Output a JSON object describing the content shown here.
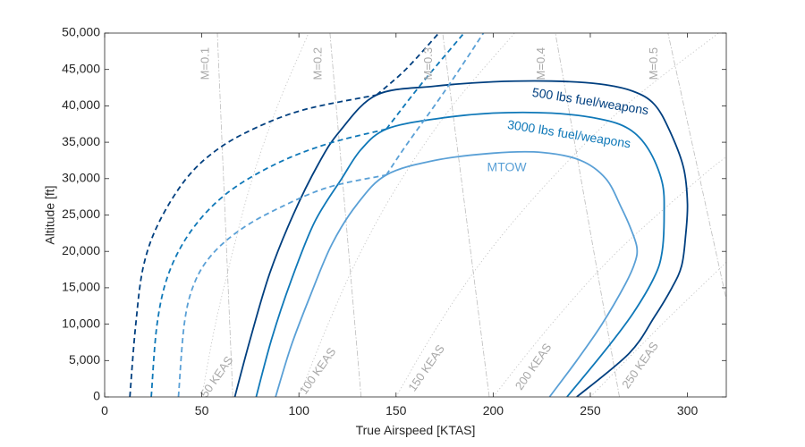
{
  "chart_data": {
    "type": "line",
    "xlabel": "True Airspeed [KTAS]",
    "ylabel": "Altitude [ft]",
    "xlim": [
      0,
      320
    ],
    "ylim": [
      0,
      50000
    ],
    "xticks": [
      0,
      50,
      100,
      150,
      200,
      250,
      300
    ],
    "yticks": [
      0,
      5000,
      10000,
      15000,
      20000,
      25000,
      30000,
      35000,
      40000,
      45000,
      50000
    ],
    "xtick_labels": [
      "0",
      "50",
      "100",
      "150",
      "200",
      "250",
      "300"
    ],
    "ytick_labels": [
      "0",
      "5,000",
      "10,000",
      "15,000",
      "20,000",
      "25,000",
      "30,000",
      "35,000",
      "40,000",
      "45,000",
      "50,000"
    ],
    "grid": false,
    "colors": {
      "500": "#003f7f",
      "3000": "#0f78b8",
      "mtow": "#5aa0d6",
      "reference": "#bdbdbd",
      "reference_text": "#a8a8a8",
      "axis": "#262626"
    },
    "mach_lines": [
      {
        "label": "M=0.1",
        "points": [
          [
            66,
            0
          ],
          [
            58,
            50000
          ]
        ]
      },
      {
        "label": "M=0.2",
        "points": [
          [
            132,
            0
          ],
          [
            116,
            50000
          ]
        ]
      },
      {
        "label": "M=0.3",
        "points": [
          [
            198,
            0
          ],
          [
            174,
            50000
          ]
        ]
      },
      {
        "label": "M=0.4",
        "points": [
          [
            265,
            0
          ],
          [
            232,
            50000
          ]
        ]
      },
      {
        "label": "M=0.5",
        "points": [
          [
            331,
            0
          ],
          [
            290,
            50000
          ]
        ]
      }
    ],
    "mach_label_positions": [
      [
        52,
        45800
      ],
      [
        110,
        45800
      ],
      [
        167,
        45800
      ],
      [
        225,
        45800
      ],
      [
        283,
        45800
      ]
    ],
    "keas_lines": [
      {
        "label": "50 KEAS",
        "points": [
          [
            50,
            0
          ],
          [
            57,
            10000
          ],
          [
            66,
            20000
          ],
          [
            76,
            30000
          ],
          [
            89,
            40000
          ],
          [
            105,
            50000
          ]
        ]
      },
      {
        "label": "100 KEAS",
        "points": [
          [
            100,
            0
          ],
          [
            115,
            10000
          ],
          [
            132,
            20000
          ],
          [
            153,
            30000
          ],
          [
            179,
            40000
          ],
          [
            211,
            50000
          ]
        ]
      },
      {
        "label": "150 KEAS",
        "points": [
          [
            150,
            0
          ],
          [
            172,
            10000
          ],
          [
            198,
            20000
          ],
          [
            230,
            30000
          ],
          [
            268,
            40000
          ],
          [
            316,
            50000
          ]
        ]
      },
      {
        "label": "200 KEAS",
        "points": [
          [
            200,
            0
          ],
          [
            230,
            10000
          ],
          [
            264,
            20000
          ],
          [
            306,
            30000
          ],
          [
            320,
            33000
          ]
        ]
      },
      {
        "label": "250 KEAS",
        "points": [
          [
            250,
            0
          ],
          [
            287,
            10000
          ],
          [
            320,
            18500
          ]
        ]
      }
    ],
    "keas_label_positions": [
      [
        58,
        2700
      ],
      [
        110,
        3500
      ],
      [
        166,
        3900
      ],
      [
        221,
        4100
      ],
      [
        276,
        4300
      ]
    ],
    "series": [
      {
        "name": "500 lbs fuel/weapons",
        "color_key": "500",
        "solid": [
          [
            67,
            0
          ],
          [
            75,
            8000
          ],
          [
            85,
            17000
          ],
          [
            97,
            25000
          ],
          [
            110,
            32000
          ],
          [
            121,
            36500
          ],
          [
            140,
            41500
          ],
          [
            170,
            42700
          ],
          [
            200,
            43300
          ],
          [
            230,
            43400
          ],
          [
            255,
            43000
          ],
          [
            272,
            42000
          ],
          [
            283,
            40200
          ],
          [
            291,
            36500
          ],
          [
            298,
            31500
          ],
          [
            300,
            26500
          ],
          [
            299,
            22000
          ],
          [
            297,
            18000
          ],
          [
            292,
            15000
          ],
          [
            283,
            11000
          ],
          [
            270,
            6000
          ],
          [
            243,
            0
          ]
        ],
        "dashed": [
          [
            13,
            0
          ],
          [
            16,
            10000
          ],
          [
            20,
            18000
          ],
          [
            28,
            24000
          ],
          [
            42,
            30000
          ],
          [
            58,
            34000
          ],
          [
            78,
            37000
          ],
          [
            103,
            39500
          ],
          [
            140,
            41500
          ]
        ],
        "dashed_ext": [
          [
            140,
            41500
          ],
          [
            155,
            45000
          ],
          [
            172,
            50000
          ]
        ]
      },
      {
        "name": "3000 lbs fuel/weapons",
        "color_key": "3000",
        "solid": [
          [
            78,
            0
          ],
          [
            86,
            8000
          ],
          [
            96,
            16000
          ],
          [
            108,
            24000
          ],
          [
            122,
            30000
          ],
          [
            132,
            34000
          ],
          [
            145,
            36800
          ],
          [
            170,
            38200
          ],
          [
            200,
            39000
          ],
          [
            230,
            39000
          ],
          [
            255,
            38200
          ],
          [
            270,
            36800
          ],
          [
            280,
            34000
          ],
          [
            287,
            29500
          ],
          [
            288,
            25000
          ],
          [
            287,
            20000
          ],
          [
            283,
            16500
          ],
          [
            272,
            11500
          ],
          [
            258,
            6500
          ],
          [
            238,
            0
          ]
        ],
        "dashed": [
          [
            24,
            0
          ],
          [
            27,
            10000
          ],
          [
            33,
            17000
          ],
          [
            45,
            23000
          ],
          [
            63,
            28000
          ],
          [
            88,
            32000
          ],
          [
            115,
            34800
          ],
          [
            145,
            36800
          ]
        ],
        "dashed_ext": [
          [
            145,
            36800
          ],
          [
            163,
            43000
          ],
          [
            185,
            50000
          ]
        ]
      },
      {
        "name": "MTOW",
        "color_key": "mtow",
        "solid": [
          [
            88,
            0
          ],
          [
            96,
            7000
          ],
          [
            106,
            14000
          ],
          [
            117,
            21000
          ],
          [
            130,
            26500
          ],
          [
            145,
            30500
          ],
          [
            170,
            32500
          ],
          [
            200,
            33500
          ],
          [
            225,
            33600
          ],
          [
            245,
            32500
          ],
          [
            258,
            30000
          ],
          [
            266,
            26000
          ],
          [
            271,
            23000
          ],
          [
            274,
            20500
          ],
          [
            273,
            18500
          ],
          [
            268,
            15500
          ],
          [
            256,
            10000
          ],
          [
            243,
            5000
          ],
          [
            229,
            0
          ]
        ],
        "dashed": [
          [
            38,
            0
          ],
          [
            41,
            10000
          ],
          [
            46,
            15500
          ],
          [
            55,
            19500
          ],
          [
            70,
            23000
          ],
          [
            90,
            26000
          ],
          [
            115,
            28800
          ],
          [
            145,
            30500
          ]
        ],
        "dashed_ext": [
          [
            145,
            30500
          ],
          [
            155,
            34500
          ],
          [
            175,
            42000
          ],
          [
            195,
            50000
          ]
        ]
      }
    ],
    "curve_labels": [
      {
        "text": "500 lbs fuel/weapons",
        "color_key": "500",
        "at": [
          250,
          40500
        ],
        "rotate": 9
      },
      {
        "text": "3000 lbs fuel/weapons",
        "color_key": "3000",
        "at": [
          239,
          36000
        ],
        "rotate": 9
      },
      {
        "text": "MTOW",
        "color_key": "mtow",
        "at": [
          207,
          31500
        ],
        "rotate": 0
      }
    ]
  }
}
